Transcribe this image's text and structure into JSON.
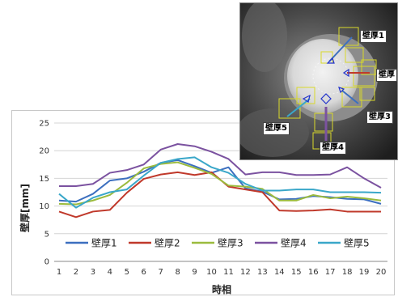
{
  "chart_data": {
    "type": "line",
    "xlabel": "時相",
    "ylabel": "壁厚[mm]",
    "ylim": [
      0,
      25
    ],
    "yticks": [
      0,
      5,
      10,
      15,
      20,
      25
    ],
    "x": [
      1,
      2,
      3,
      4,
      5,
      6,
      7,
      8,
      9,
      10,
      11,
      12,
      13,
      14,
      15,
      16,
      17,
      18,
      19,
      20
    ],
    "grid": true,
    "legend_position": "bottom",
    "series": [
      {
        "name": "壁厚1",
        "color": "#3c6fbf",
        "values": [
          11.0,
          10.8,
          12.2,
          14.6,
          15.0,
          16.2,
          17.8,
          18.3,
          17.2,
          16.0,
          17.0,
          13.2,
          12.6,
          11.2,
          11.3,
          11.8,
          11.6,
          11.3,
          11.2,
          10.4
        ]
      },
      {
        "name": "壁厚2",
        "color": "#c0392b",
        "values": [
          9.0,
          8.0,
          9.0,
          9.3,
          12.4,
          14.9,
          15.7,
          16.1,
          15.6,
          16.1,
          13.5,
          13.0,
          12.5,
          9.2,
          9.1,
          9.2,
          9.4,
          9.0,
          9.0,
          9.0
        ]
      },
      {
        "name": "壁厚3",
        "color": "#9bbb3d",
        "values": [
          10.4,
          10.3,
          11.0,
          12.0,
          14.2,
          16.8,
          17.6,
          17.9,
          16.9,
          15.8,
          13.7,
          13.5,
          13.1,
          11.0,
          11.0,
          12.0,
          11.4,
          11.7,
          11.4,
          11.0
        ]
      },
      {
        "name": "壁厚4",
        "color": "#7b52a0",
        "values": [
          13.6,
          13.6,
          14.0,
          16.0,
          16.5,
          17.5,
          20.2,
          21.2,
          20.8,
          19.8,
          18.5,
          15.7,
          16.1,
          16.1,
          15.6,
          15.6,
          15.7,
          17.0,
          15.0,
          13.3
        ]
      },
      {
        "name": "壁厚5",
        "color": "#3aa7c9",
        "values": [
          12.2,
          9.7,
          11.5,
          12.5,
          13.0,
          15.5,
          17.8,
          18.5,
          18.8,
          17.0,
          16.0,
          14.0,
          12.8,
          12.8,
          13.0,
          13.0,
          12.5,
          12.5,
          12.5,
          12.4
        ]
      }
    ]
  },
  "ct_image": {
    "labels": [
      "壁厚1",
      "壁厚",
      "壁厚3",
      "壁厚4",
      "壁厚5"
    ]
  }
}
